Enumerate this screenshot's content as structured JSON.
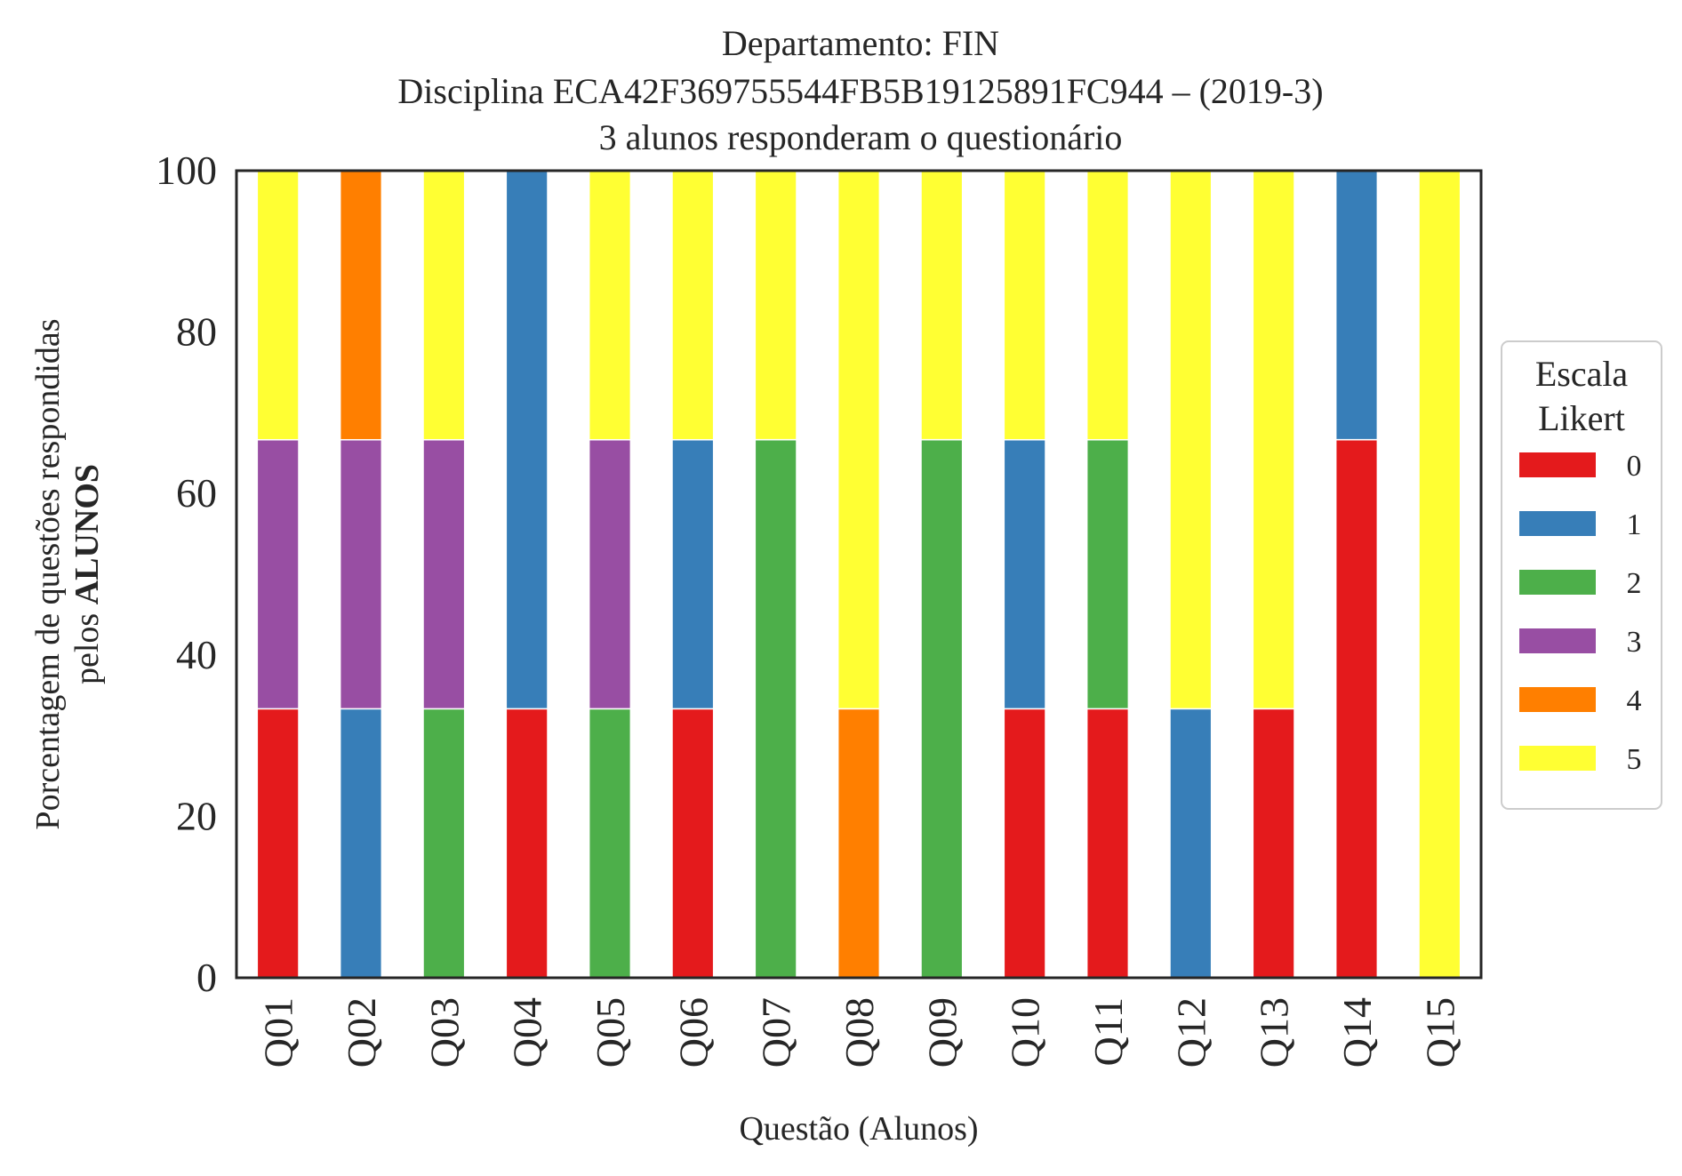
{
  "chart_data": {
    "type": "bar",
    "stacked": true,
    "title_lines": [
      "Departamento: FIN",
      "Disciplina ECA42F369755544FB5B19125891FC944 – (2019-3)",
      "3 alunos responderam o questionário"
    ],
    "ylabel_line1": "Porcentagem de questões respondidas",
    "ylabel_line2_prefix": "pelos ",
    "ylabel_line2_bold": "ALUNOS",
    "xlabel": "Questão (Alunos)",
    "ylim": [
      0,
      100
    ],
    "yticks": [
      "0",
      "20",
      "40",
      "60",
      "80",
      "100"
    ],
    "grid": false,
    "legend_title_lines": [
      "Escala",
      "Likert"
    ],
    "legend_position": "right",
    "categories": [
      "Q01",
      "Q02",
      "Q03",
      "Q04",
      "Q05",
      "Q06",
      "Q07",
      "Q08",
      "Q09",
      "Q10",
      "Q11",
      "Q12",
      "Q13",
      "Q14",
      "Q15"
    ],
    "series": [
      {
        "name": "0",
        "color": "#e41a1c",
        "values": [
          33.33,
          0,
          0,
          33.33,
          0,
          33.33,
          0,
          0,
          0,
          33.33,
          33.33,
          0,
          33.33,
          66.67,
          0
        ]
      },
      {
        "name": "1",
        "color": "#377eb8",
        "values": [
          0,
          33.33,
          0,
          66.67,
          0,
          33.33,
          0,
          0,
          0,
          33.33,
          0,
          33.33,
          0,
          33.33,
          0
        ]
      },
      {
        "name": "2",
        "color": "#4daf4a",
        "values": [
          0,
          0,
          33.33,
          0,
          33.33,
          0,
          66.67,
          0,
          66.67,
          0,
          33.33,
          0,
          0,
          0,
          0
        ]
      },
      {
        "name": "3",
        "color": "#984ea3",
        "values": [
          33.33,
          33.33,
          33.33,
          0,
          33.33,
          0,
          0,
          0,
          0,
          0,
          0,
          0,
          0,
          0,
          0
        ]
      },
      {
        "name": "4",
        "color": "#ff7f00",
        "values": [
          0,
          33.33,
          0,
          0,
          0,
          0,
          0,
          33.33,
          0,
          0,
          0,
          0,
          0,
          0,
          0
        ]
      },
      {
        "name": "5",
        "color": "#ffff33",
        "values": [
          33.33,
          0,
          33.33,
          0,
          33.33,
          33.33,
          33.33,
          66.67,
          33.33,
          33.33,
          33.33,
          66.67,
          66.67,
          0,
          100
        ]
      }
    ]
  }
}
